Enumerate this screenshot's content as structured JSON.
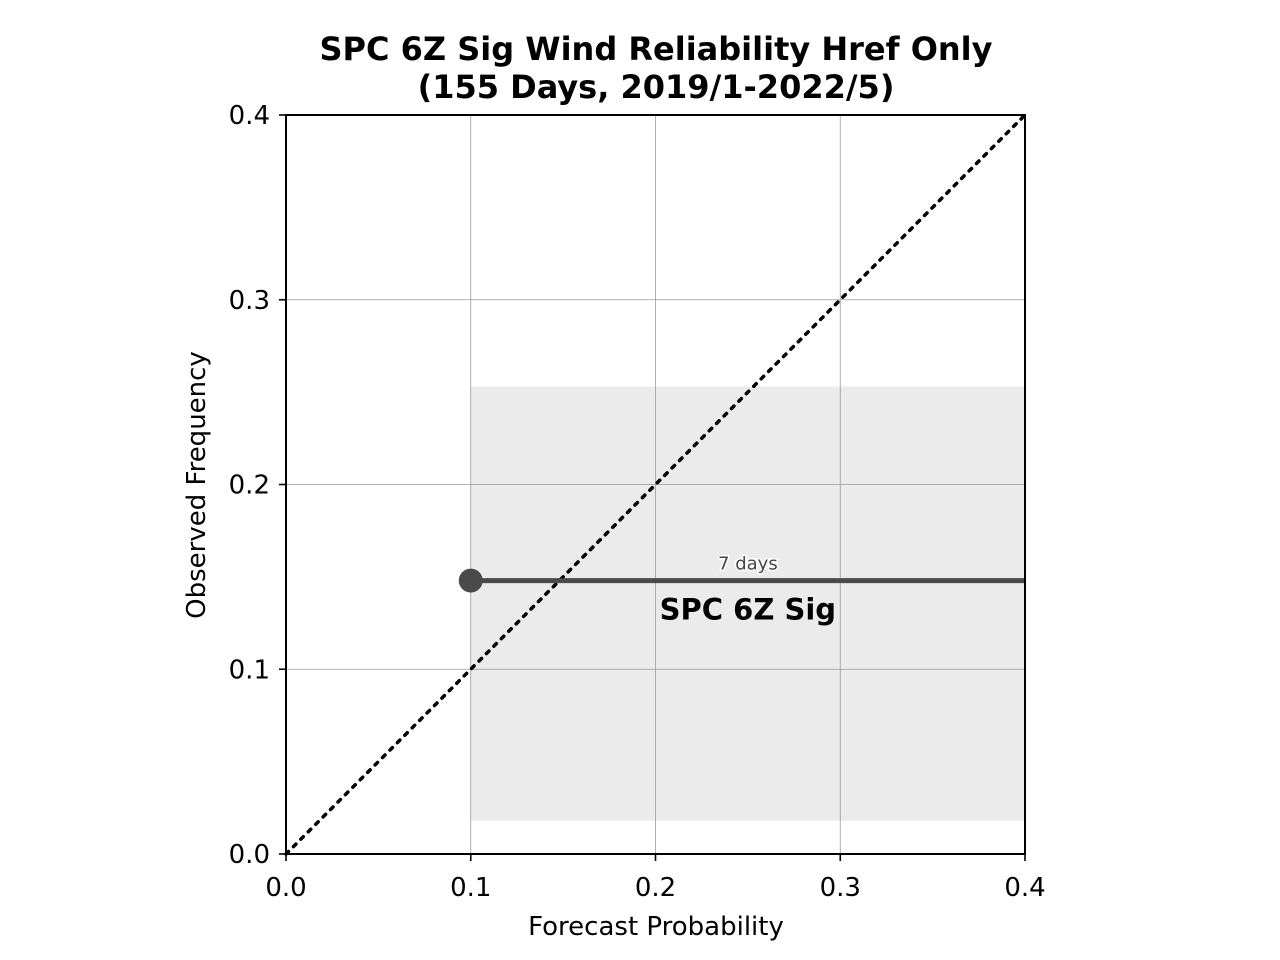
{
  "chart_data": {
    "type": "line",
    "title": "SPC 6Z Sig Wind Reliability Href Only",
    "subtitle": "(155 Days, 2019/1-2022/5)",
    "xlabel": "Forecast Probability",
    "ylabel": "Observed Frequency",
    "xlim": [
      0.0,
      0.4
    ],
    "ylim": [
      0.0,
      0.4
    ],
    "xticks": [
      "0.0",
      "0.1",
      "0.2",
      "0.3",
      "0.4"
    ],
    "yticks": [
      "0.0",
      "0.1",
      "0.2",
      "0.3",
      "0.4"
    ],
    "grid": true,
    "perfect_reliability_line": {
      "x": [
        0.0,
        0.4
      ],
      "y": [
        0.0,
        0.4
      ],
      "style": "dotted"
    },
    "series": [
      {
        "name": "SPC 6Z Sig",
        "x": [
          0.1,
          0.4
        ],
        "y": [
          0.148,
          0.148
        ],
        "confidence_band": {
          "x": [
            0.1,
            0.4
          ],
          "low": 0.018,
          "high": 0.253
        },
        "count_label": "7 days",
        "color": "#4a4a4a"
      }
    ],
    "colors": {
      "band": "#ebebeb",
      "grid": "#9a9a9a",
      "series": "#4a4a4a"
    }
  }
}
